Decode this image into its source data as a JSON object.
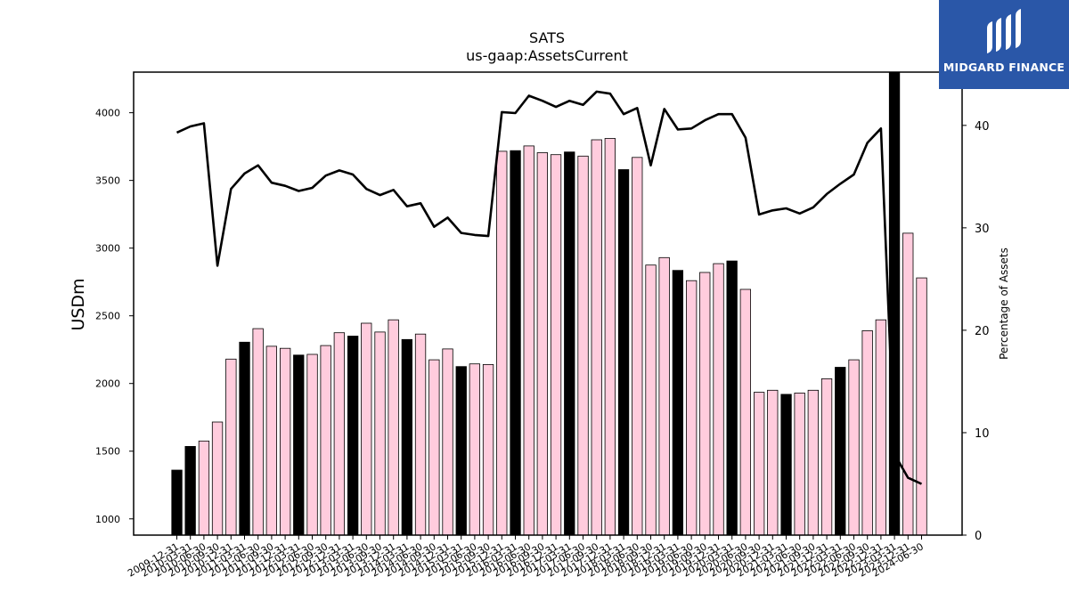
{
  "chart_data": {
    "type": "bar+line",
    "title": "SATS",
    "subtitle": "us-gaap:AssetsCurrent",
    "ylabel": "USDm",
    "y2label": "Percentage of Assets",
    "ylim": [
      880,
      4300
    ],
    "y2lim": [
      0,
      45.2
    ],
    "yticks": [
      1000,
      1500,
      2000,
      2500,
      3000,
      3500,
      4000
    ],
    "y2ticks": [
      0,
      10,
      20,
      30,
      40
    ],
    "bar_colors": {
      "annual": "#000000",
      "quarterly": "#ffccdd"
    },
    "line_color": "#000000",
    "series": [
      {
        "name": "AssetsCurrent",
        "kind": "bar",
        "values": [
          1360,
          1535,
          1575,
          1715,
          2180,
          2305,
          2405,
          2275,
          2260,
          2210,
          2215,
          2280,
          2375,
          2350,
          2445,
          2380,
          2470,
          2325,
          2365,
          2175,
          2255,
          2125,
          2145,
          2140,
          3715,
          3720,
          3755,
          3705,
          3690,
          3710,
          3680,
          3800,
          3810,
          3580,
          3670,
          2875,
          2930,
          2835,
          2760,
          2820,
          2885,
          2905,
          2695,
          1935,
          1950,
          1920,
          1930,
          1950,
          2035,
          2120,
          2175,
          2390,
          2470,
          4350,
          3110,
          2780
        ]
      },
      {
        "name": "Percentage of Assets",
        "kind": "line",
        "values": [
          39.3,
          39.9,
          40.2,
          26.3,
          33.8,
          35.3,
          36.1,
          34.4,
          34.1,
          33.6,
          33.9,
          35.1,
          35.6,
          35.2,
          33.8,
          33.2,
          33.7,
          32.1,
          32.4,
          30.1,
          31.0,
          29.5,
          29.3,
          29.2,
          41.3,
          41.2,
          42.9,
          42.4,
          41.8,
          42.4,
          42.0,
          43.3,
          43.1,
          41.1,
          41.7,
          36.1,
          41.6,
          39.6,
          39.7,
          40.5,
          41.1,
          41.1,
          38.8,
          31.3,
          31.7,
          31.9,
          31.4,
          32.0,
          33.3,
          34.3,
          35.2,
          38.3,
          39.7,
          7.9,
          5.6,
          5.0
        ]
      }
    ],
    "annual_index": [
      0,
      1,
      5,
      9,
      13,
      17,
      21,
      25,
      29,
      33,
      37,
      41,
      45,
      49,
      53
    ],
    "categories": [
      "2009-12-31",
      "2010-03-31",
      "2010-06-30",
      "2010-09-30",
      "2010-12-31",
      "2011-03-31",
      "2011-06-30",
      "2011-09-30",
      "2011-12-31",
      "2012-03-31",
      "2012-06-30",
      "2012-09-30",
      "2012-12-31",
      "2013-03-31",
      "2013-06-30",
      "2013-09-30",
      "2013-12-31",
      "2014-03-31",
      "2014-06-30",
      "2014-09-30",
      "2014-12-31",
      "2015-03-31",
      "2015-06-30",
      "2015-09-30",
      "2015-12-31",
      "2016-03-31",
      "2016-06-30",
      "2016-09-30",
      "2016-12-31",
      "2017-03-31",
      "2017-06-30",
      "2017-09-30",
      "2017-12-31",
      "2018-03-31",
      "2018-06-30",
      "2018-09-30",
      "2018-12-31",
      "2019-03-31",
      "2019-06-30",
      "2019-09-30",
      "2019-12-31",
      "2020-03-31",
      "2020-06-30",
      "2020-09-30",
      "2020-12-31",
      "2021-03-31",
      "2021-06-30",
      "2021-09-30",
      "2021-12-31",
      "2022-03-31",
      "2022-06-30",
      "2022-09-30",
      "2022-12-31",
      "2023-03-31",
      "2023-12-31",
      "2024-06-30"
    ],
    "grid": false
  },
  "logo": {
    "text": "MIDGARD FINANCE",
    "color": "#2a57a8"
  }
}
